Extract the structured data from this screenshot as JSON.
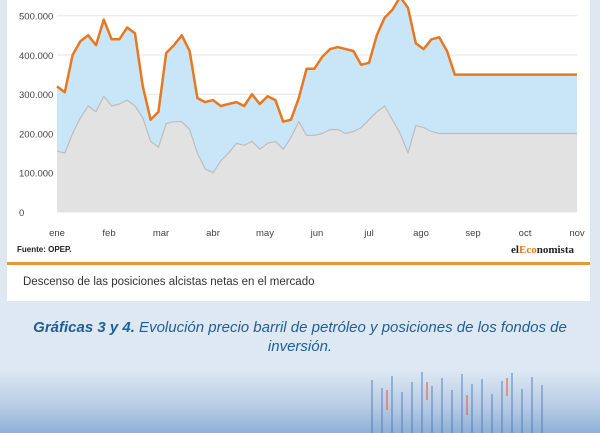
{
  "chart_data": {
    "type": "area",
    "y_ticks": [
      "0",
      "100.000",
      "200.000",
      "300.000",
      "400.000",
      "500.000"
    ],
    "ylim": [
      0,
      540000
    ],
    "categories": [
      "ene",
      "feb",
      "mar",
      "abr",
      "may",
      "jun",
      "jul",
      "ago",
      "sep",
      "oct",
      "nov"
    ],
    "x": [
      0,
      0.15,
      0.3,
      0.45,
      0.6,
      0.75,
      0.9,
      1.05,
      1.2,
      1.35,
      1.5,
      1.65,
      1.8,
      1.95,
      2.1,
      2.25,
      2.4,
      2.55,
      2.7,
      2.85,
      3.0,
      3.15,
      3.3,
      3.45,
      3.6,
      3.75,
      3.9,
      4.05,
      4.2,
      4.35,
      4.5,
      4.65,
      4.8,
      4.95,
      5.1,
      5.25,
      5.4,
      5.55,
      5.7,
      5.85,
      6.0,
      6.15,
      6.3,
      6.45,
      6.6,
      6.75,
      6.9,
      7.05,
      7.2,
      7.35,
      7.5,
      7.65,
      7.8,
      7.95,
      8.1,
      8.25,
      8.4,
      8.55,
      8.7,
      8.85,
      9.0,
      9.15,
      9.3,
      9.45,
      9.6,
      9.75,
      9.9,
      10.0
    ],
    "series": [
      {
        "color": "#e8781f",
        "fill": "#c9e5f8",
        "values": [
          320000,
          305000,
          400000,
          435000,
          450000,
          425000,
          490000,
          440000,
          440000,
          470000,
          455000,
          320000,
          235000,
          255000,
          405000,
          425000,
          450000,
          410000,
          290000,
          280000,
          285000,
          270000,
          275000,
          280000,
          270000,
          300000,
          275000,
          295000,
          285000,
          230000,
          235000,
          290000,
          365000,
          365000,
          395000,
          415000,
          420000,
          415000,
          410000,
          375000,
          380000,
          450000,
          495000,
          515000,
          548000,
          520000,
          430000,
          415000,
          440000,
          445000,
          410000,
          350000,
          350000,
          350000,
          350000,
          350000,
          350000,
          350000,
          350000,
          350000,
          350000,
          350000,
          350000,
          350000,
          350000,
          350000,
          350000,
          350000
        ]
      },
      {
        "color": "#bdbdbd",
        "fill": "#e2e2e2",
        "values": [
          155000,
          150000,
          200000,
          240000,
          270000,
          255000,
          295000,
          270000,
          275000,
          285000,
          270000,
          240000,
          180000,
          165000,
          225000,
          230000,
          230000,
          210000,
          150000,
          110000,
          100000,
          130000,
          150000,
          175000,
          170000,
          180000,
          160000,
          175000,
          180000,
          160000,
          190000,
          230000,
          195000,
          195000,
          200000,
          210000,
          210000,
          200000,
          205000,
          215000,
          235000,
          255000,
          270000,
          235000,
          200000,
          150000,
          220000,
          215000,
          205000,
          200000,
          200000,
          200000,
          200000,
          200000,
          200000,
          200000,
          200000,
          200000,
          200000,
          200000,
          200000,
          200000,
          200000,
          200000,
          200000,
          200000,
          200000,
          200000
        ]
      }
    ],
    "grid": true,
    "legend": "none"
  },
  "source": "Fuente: OPEP.",
  "brand": {
    "prefix": "el",
    "highlight": "Eco",
    "suffix": "nomista"
  },
  "subtitle": "Descenso de las posiciones alcistas netas en el mercado",
  "caption": {
    "bold": "Gráficas 3 y 4.",
    "text": " Evolución precio barril de petróleo y posiciones de los fondos de inversión."
  }
}
